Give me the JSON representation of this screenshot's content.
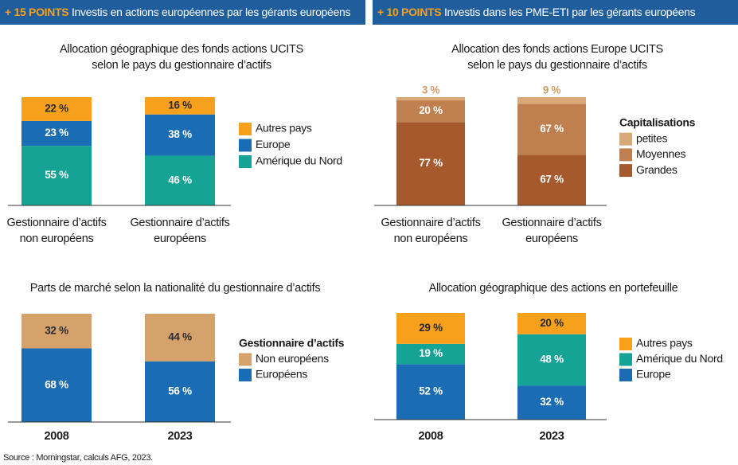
{
  "banners": [
    {
      "highlight": "+ 15 POINTS",
      "text": "Investis en actions européennes par les gérants européens"
    },
    {
      "highlight": "+ 10 POINTS",
      "text": "Investis dans les PME-ETI par les gérants européens"
    }
  ],
  "source": "Source : Morningstar, calculs AFG, 2023.",
  "chart_data": [
    {
      "type": "bar",
      "stacked": "percent",
      "legend": "right",
      "title": [
        "Allocation géographique des fonds actions UCITS",
        "selon le pays du gestionnaire d’actifs"
      ],
      "categories": [
        [
          "Gestionnaire d’actifs",
          "non européens"
        ],
        [
          "Gestionnaire d’actifs",
          "européens"
        ]
      ],
      "series": [
        {
          "name": "Amérique du Nord",
          "color": "#14a395",
          "label_color": "#ffffff",
          "values": [
            55,
            46
          ],
          "value_labels": [
            "55 %",
            "46 %"
          ]
        },
        {
          "name": "Europe",
          "color": "#1a6db5",
          "label_color": "#ffffff",
          "values": [
            23,
            38
          ],
          "value_labels": [
            "23 %",
            "38 %"
          ]
        },
        {
          "name": "Autres pays",
          "color": "#f7a01c",
          "label_color": "#2b2b2b",
          "values": [
            22,
            16
          ],
          "value_labels": [
            "22 %",
            "16 %"
          ]
        }
      ]
    },
    {
      "type": "bar",
      "stacked": "percent",
      "legend": "right",
      "title": [
        "Allocation des fonds actions Europe UCITS",
        "selon le pays du gestionnaire d’actifs"
      ],
      "categories": [
        [
          "Gestionnaire d’actifs",
          "non européens"
        ],
        [
          "Gestionnaire d’actifs",
          "européens"
        ]
      ],
      "legend_title": "Capitalisations",
      "series": [
        {
          "name": "Grandes",
          "color": "#a5592c",
          "label_color": "#ffffff",
          "values": [
            77,
            67
          ],
          "value_labels": [
            "77 %",
            "67 %"
          ]
        },
        {
          "name": "Moyennes",
          "color": "#c07f4f",
          "label_color": "#ffffff",
          "values": [
            20,
            67
          ],
          "value_labels": [
            "20 %",
            "67 %"
          ]
        },
        {
          "name": "petites",
          "color": "#d9a877",
          "label_color": "#d09a64",
          "label_position": "above",
          "values": [
            3,
            9
          ],
          "value_labels": [
            "3 %",
            "9 %"
          ]
        }
      ]
    },
    {
      "type": "bar",
      "stacked": "percent",
      "legend": "right",
      "title": [
        "Parts de marché selon la nationalité du gestionnaire d’actifs"
      ],
      "categories": [
        "2008",
        "2023"
      ],
      "legend_title": "Gestionnaire d’actifs",
      "series": [
        {
          "name": "Européens",
          "color": "#1a6db5",
          "label_color": "#ffffff",
          "values": [
            68,
            56
          ],
          "value_labels": [
            "68 %",
            "56 %"
          ]
        },
        {
          "name": "Non européens",
          "color": "#d6a26c",
          "label_color": "#2b2b2b",
          "values": [
            32,
            44
          ],
          "value_labels": [
            "32 %",
            "44 %"
          ]
        }
      ]
    },
    {
      "type": "bar",
      "stacked": "percent",
      "legend": "right",
      "title": [
        "Allocation géographique des actions en portefeuille"
      ],
      "categories": [
        "2008",
        "2023"
      ],
      "series": [
        {
          "name": "Europe",
          "color": "#1a6db5",
          "label_color": "#ffffff",
          "values": [
            52,
            32
          ],
          "value_labels": [
            "52 %",
            "32 %"
          ]
        },
        {
          "name": "Amérique du Nord",
          "color": "#14a395",
          "label_color": "#ffffff",
          "values": [
            19,
            48
          ],
          "value_labels": [
            "19 %",
            "48 %"
          ]
        },
        {
          "name": "Autres pays",
          "color": "#f7a01c",
          "label_color": "#2b2b2b",
          "values": [
            29,
            20
          ],
          "value_labels": [
            "29 %",
            "20 %"
          ]
        }
      ]
    }
  ]
}
